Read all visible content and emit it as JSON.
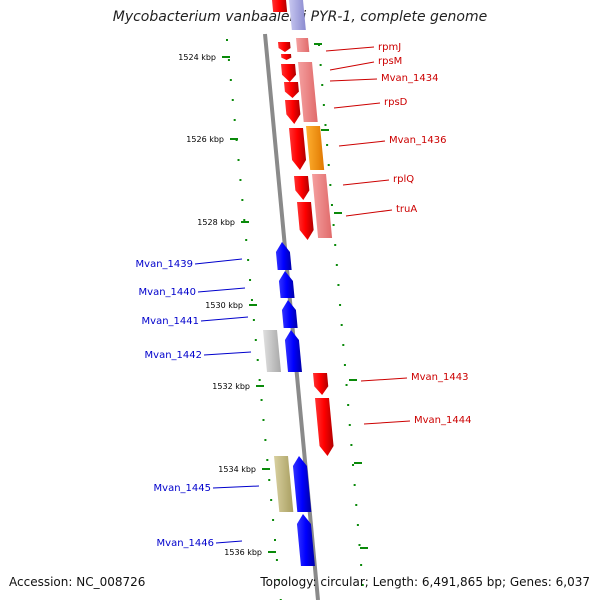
{
  "title": "Mycobacterium vanbaalenii PYR-1, complete genome",
  "footer": {
    "accession": "Accession: NC_008726",
    "summary": "Topology: circular; Length: 6,491,865 bp; Genes: 6,037"
  },
  "colors": {
    "backbone": "#8a8a8a",
    "tick": "#0a8a0a",
    "forward_label": "#cc0000",
    "reverse_label": "#0000cc"
  },
  "scale_labels": [
    "1524 kbp",
    "1526 kbp",
    "1528 kbp",
    "1530 kbp",
    "1532 kbp",
    "1534 kbp",
    "1536 kbp"
  ],
  "genes": [
    {
      "label": "rpmJ",
      "strand": "+",
      "kind": "cds",
      "color": "#ff0000"
    },
    {
      "label": "rpsM",
      "strand": "+",
      "kind": "cds",
      "color": "#ff0000"
    },
    {
      "label": "Mvan_1434",
      "strand": "+",
      "kind": "cds",
      "color": "#ff0000"
    },
    {
      "label": "rpsD",
      "strand": "+",
      "kind": "cds",
      "color": "#ff0000"
    },
    {
      "label": "Mvan_1436",
      "strand": "+",
      "kind": "cds",
      "color": "#ff0000"
    },
    {
      "label": "rplQ",
      "strand": "+",
      "kind": "cds",
      "color": "#ff0000"
    },
    {
      "label": "truA",
      "strand": "+",
      "kind": "cds",
      "color": "#ff0000"
    },
    {
      "label": "Mvan_1439",
      "strand": "-",
      "kind": "cds",
      "color": "#0000ff"
    },
    {
      "label": "Mvan_1440",
      "strand": "-",
      "kind": "cds",
      "color": "#0000ff"
    },
    {
      "label": "Mvan_1441",
      "strand": "-",
      "kind": "cds",
      "color": "#0000ff"
    },
    {
      "label": "Mvan_1442",
      "strand": "-",
      "kind": "cds",
      "color": "#0000ff"
    },
    {
      "label": "Mvan_1443",
      "strand": "+",
      "kind": "cds",
      "color": "#ff0000"
    },
    {
      "label": "Mvan_1444",
      "strand": "+",
      "kind": "cds",
      "color": "#ff0000"
    },
    {
      "label": "Mvan_1445",
      "strand": "-",
      "kind": "cds",
      "color": "#0000ff"
    },
    {
      "label": "Mvan_1446",
      "strand": "-",
      "kind": "cds",
      "color": "#0000ff"
    }
  ]
}
